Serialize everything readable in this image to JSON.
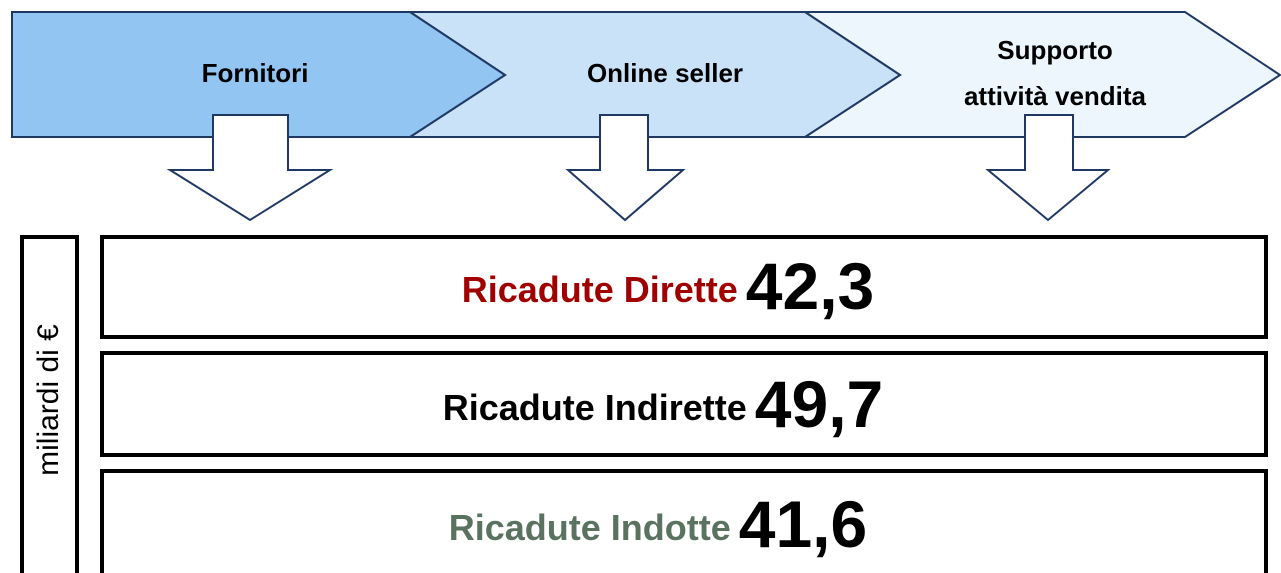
{
  "header": {
    "stages": [
      "Fornitori",
      "Online seller",
      [
        "Supporto",
        "attività vendita"
      ]
    ]
  },
  "unit": "miliardi di €",
  "rows": [
    {
      "label": "Ricadute Dirette",
      "value": "42,3"
    },
    {
      "label": "Ricadute Indirette",
      "value": "49,7"
    },
    {
      "label": "Ricadute Indotte",
      "value": "41,6"
    }
  ]
}
